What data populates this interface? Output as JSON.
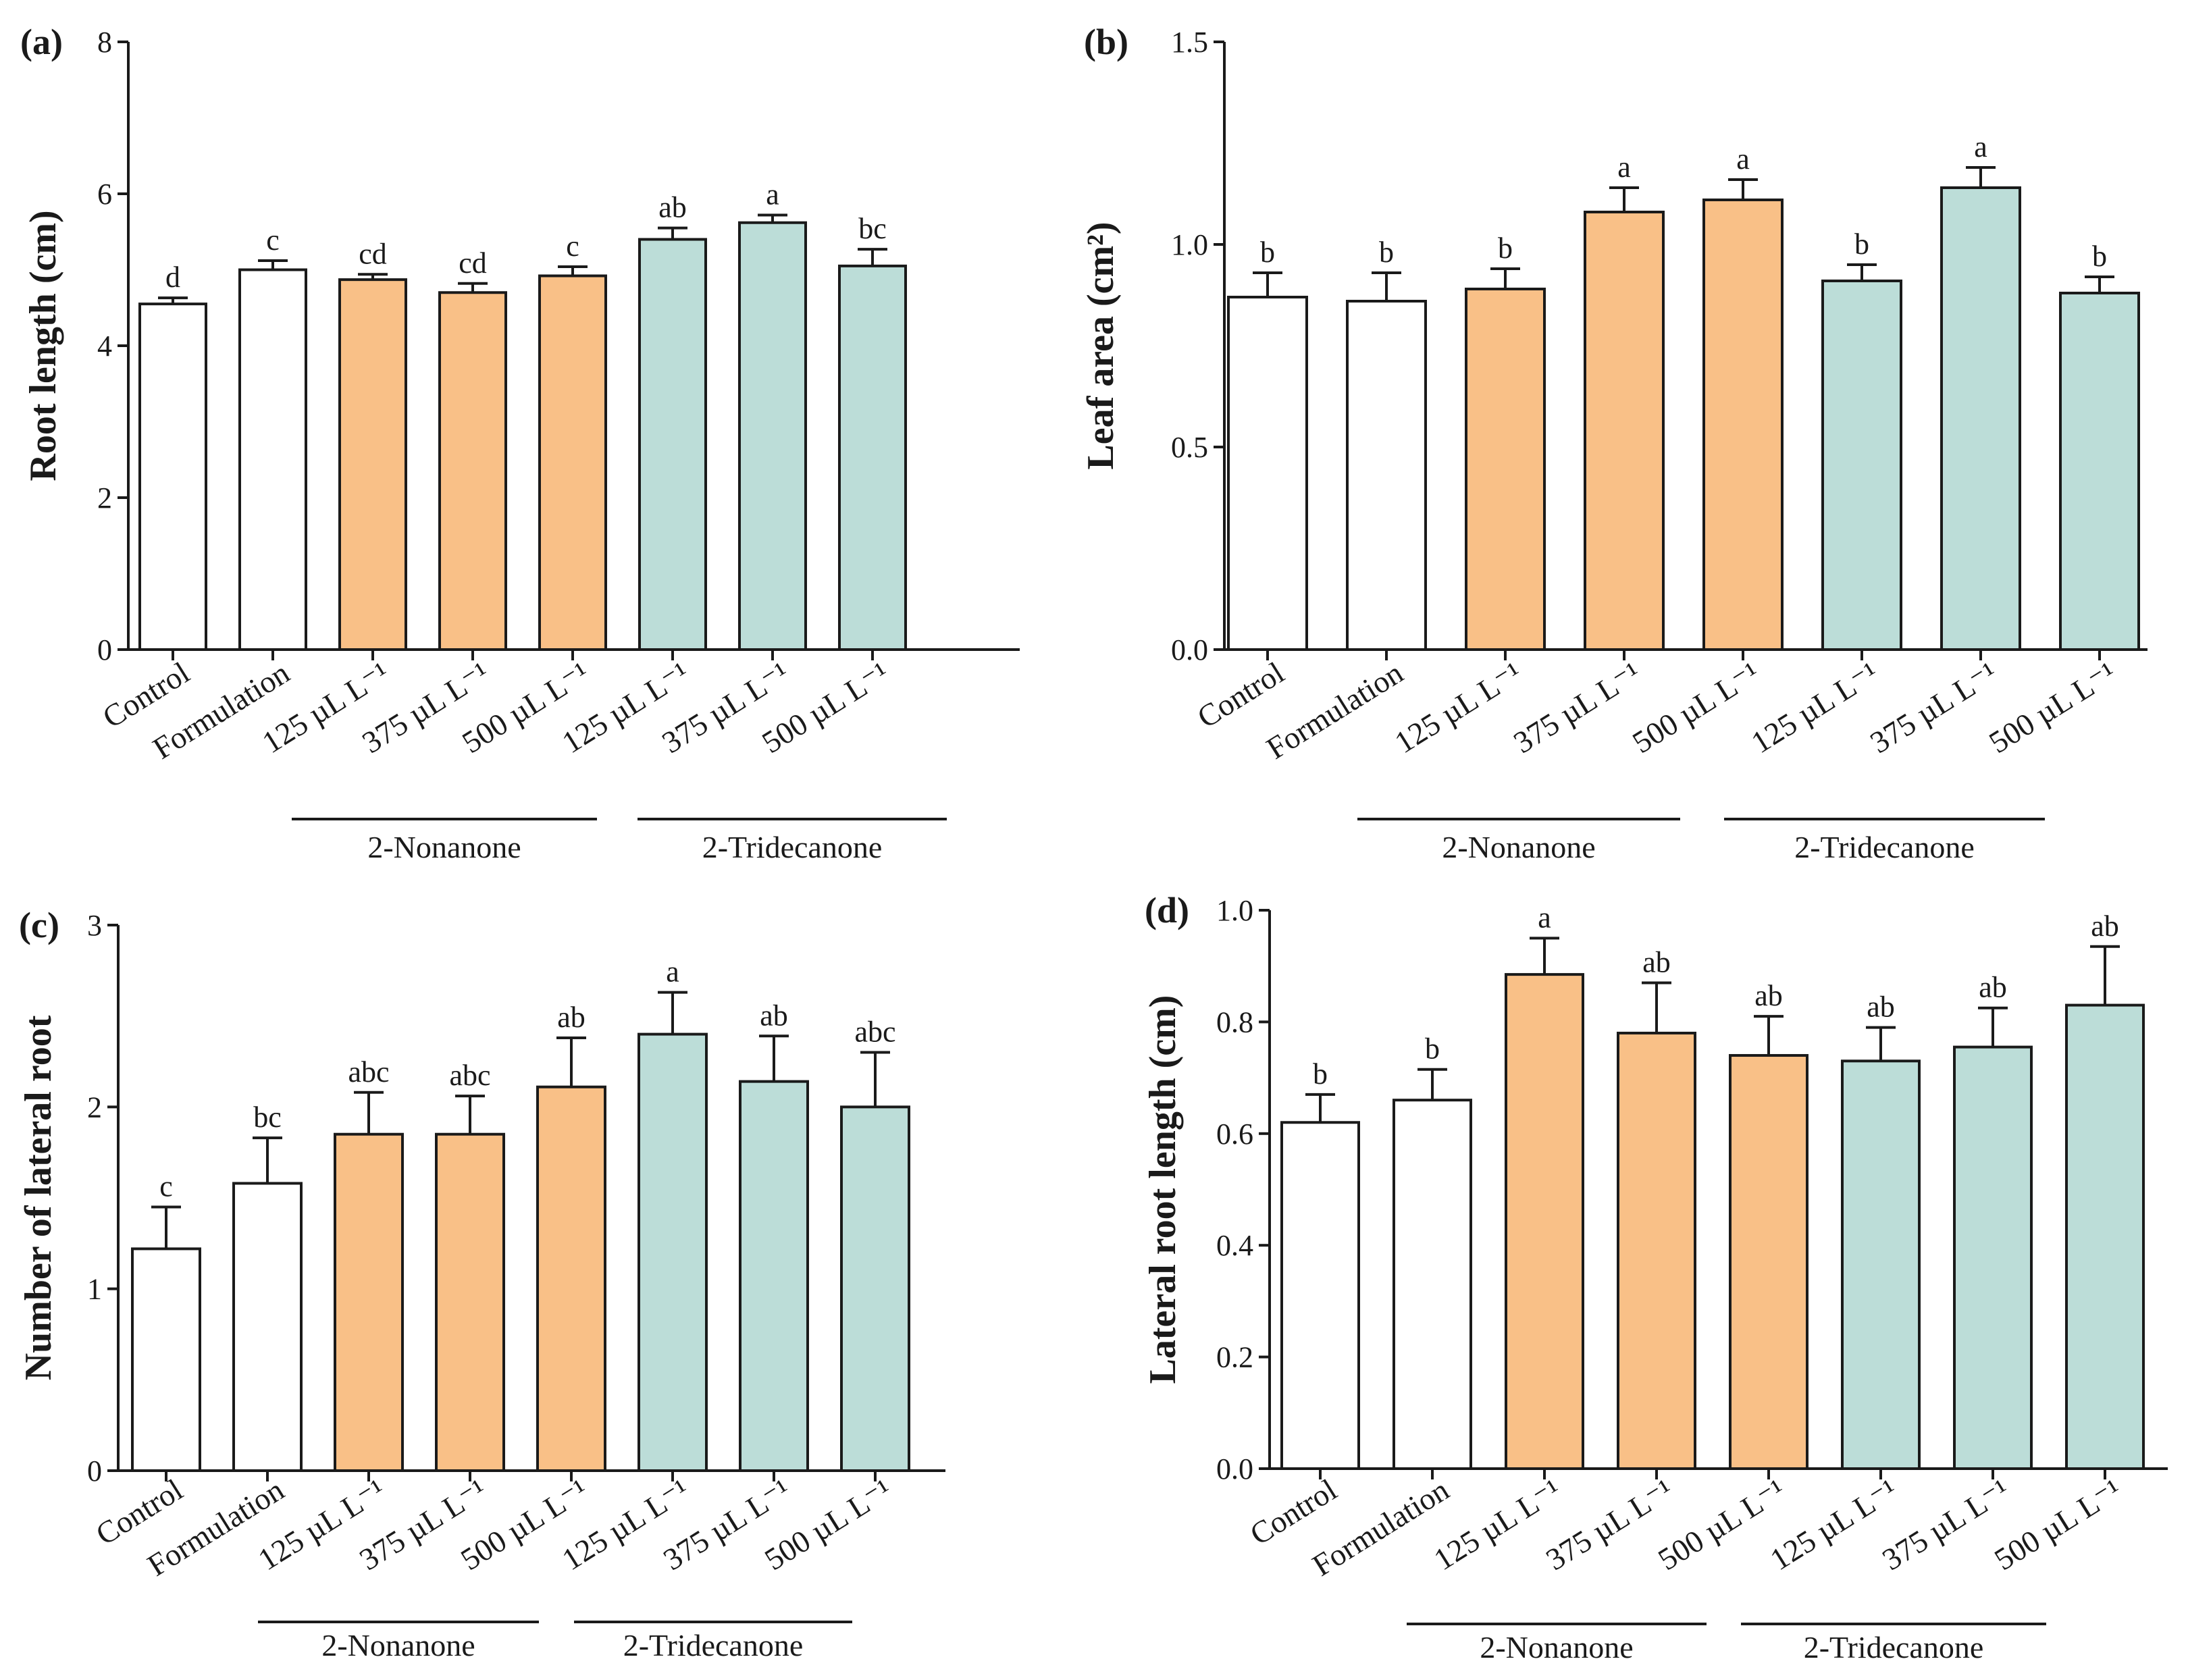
{
  "colors": {
    "control": "#ffffff",
    "nonanone": "#f9c087",
    "tridecanone": "#bcddd8",
    "stroke": "#1a1a1a"
  },
  "chart_data": [
    {
      "panel": "(a)",
      "type": "bar",
      "ylabel": "Root length (cm)",
      "ylim": [
        0,
        8
      ],
      "yticks": [
        "0",
        "2",
        "4",
        "6",
        "8"
      ],
      "categories": [
        "Control",
        "Formulation",
        "125 µL L⁻¹",
        "375 µL L⁻¹",
        "500 µL L⁻¹",
        "125 µL L⁻¹",
        "375 µL L⁻¹",
        "500 µL L⁻¹"
      ],
      "values": [
        4.55,
        5.0,
        4.87,
        4.7,
        4.92,
        5.4,
        5.62,
        5.05
      ],
      "errors": [
        0.08,
        0.12,
        0.07,
        0.12,
        0.12,
        0.15,
        0.1,
        0.22
      ],
      "letters": [
        "d",
        "c",
        "cd",
        "cd",
        "c",
        "ab",
        "a",
        "bc"
      ],
      "groups": [
        {
          "name": "2-Nonanone",
          "from": 2,
          "to": 4
        },
        {
          "name": "2-Tridecanone",
          "from": 5,
          "to": 7
        }
      ]
    },
    {
      "panel": "(b)",
      "type": "bar",
      "ylabel": "Leaf area (cm²)",
      "ylim": [
        0,
        1.5
      ],
      "yticks": [
        "0.0",
        "0.5",
        "1.0",
        "1.5"
      ],
      "categories": [
        "Control",
        "Formulation",
        "125 µL L⁻¹",
        "375 µL L⁻¹",
        "500 µL L⁻¹",
        "125 µL L⁻¹",
        "375 µL L⁻¹",
        "500 µL L⁻¹"
      ],
      "values": [
        0.87,
        0.86,
        0.89,
        1.08,
        1.11,
        0.91,
        1.14,
        0.88
      ],
      "errors": [
        0.06,
        0.07,
        0.05,
        0.06,
        0.05,
        0.04,
        0.05,
        0.04
      ],
      "letters": [
        "b",
        "b",
        "b",
        "a",
        "a",
        "b",
        "a",
        "b"
      ],
      "groups": [
        {
          "name": "2-Nonanone",
          "from": 2,
          "to": 4
        },
        {
          "name": "2-Tridecanone",
          "from": 5,
          "to": 7
        }
      ]
    },
    {
      "panel": "(c)",
      "type": "bar",
      "ylabel": "Number of lateral root",
      "ylim": [
        0,
        3
      ],
      "yticks": [
        "0",
        "1",
        "2",
        "3"
      ],
      "categories": [
        "Control",
        "Formulation",
        "125 µL L⁻¹",
        "375 µL L⁻¹",
        "500 µL L⁻¹",
        "125 µL L⁻¹",
        "375 µL L⁻¹",
        "500 µL L⁻¹"
      ],
      "values": [
        1.22,
        1.58,
        1.85,
        1.85,
        2.11,
        2.4,
        2.14,
        2.0
      ],
      "errors": [
        0.23,
        0.25,
        0.23,
        0.21,
        0.27,
        0.23,
        0.25,
        0.3
      ],
      "letters": [
        "c",
        "bc",
        "abc",
        "abc",
        "ab",
        "a",
        "ab",
        "abc"
      ],
      "groups": [
        {
          "name": "2-Nonanone",
          "from": 2,
          "to": 4
        },
        {
          "name": "2-Tridecanone",
          "from": 5,
          "to": 7
        }
      ]
    },
    {
      "panel": "(d)",
      "type": "bar",
      "ylabel": "Lateral root length (cm)",
      "ylim": [
        0,
        1.0
      ],
      "yticks": [
        "0.0",
        "0.2",
        "0.4",
        "0.6",
        "0.8",
        "1.0"
      ],
      "categories": [
        "Control",
        "Formulation",
        "125 µL L⁻¹",
        "375 µL L⁻¹",
        "500 µL L⁻¹",
        "125 µL L⁻¹",
        "375 µL L⁻¹",
        "500 µL L⁻¹"
      ],
      "values": [
        0.62,
        0.66,
        0.885,
        0.78,
        0.74,
        0.73,
        0.755,
        0.83
      ],
      "errors": [
        0.05,
        0.055,
        0.065,
        0.09,
        0.07,
        0.06,
        0.07,
        0.105
      ],
      "letters": [
        "b",
        "b",
        "a",
        "ab",
        "ab",
        "ab",
        "ab",
        "ab"
      ],
      "groups": [
        {
          "name": "2-Nonanone",
          "from": 2,
          "to": 4
        },
        {
          "name": "2-Tridecanone",
          "from": 5,
          "to": 7
        }
      ]
    }
  ]
}
